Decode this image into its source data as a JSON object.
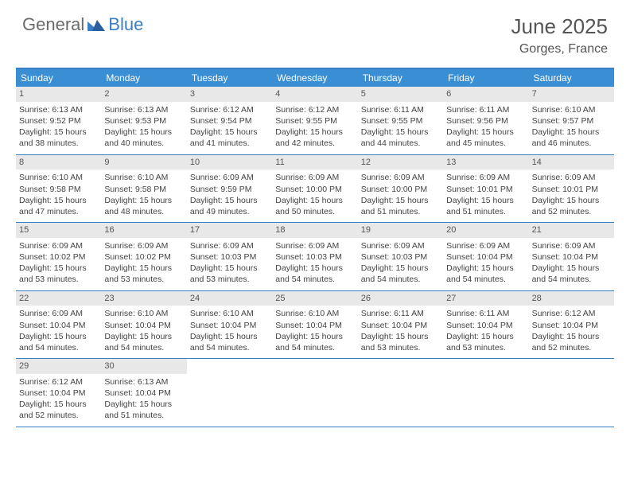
{
  "logo": {
    "text1": "General",
    "text2": "Blue"
  },
  "title": "June 2025",
  "location": "Gorges, France",
  "colors": {
    "header_bar": "#3a8fd4",
    "border": "#3a7fc4",
    "daynum_bg": "#e8e8e8",
    "text": "#444444",
    "logo_gray": "#6a6a6a",
    "logo_blue": "#3a7fc4"
  },
  "weekdays": [
    "Sunday",
    "Monday",
    "Tuesday",
    "Wednesday",
    "Thursday",
    "Friday",
    "Saturday"
  ],
  "weeks": [
    [
      {
        "n": "1",
        "sr": "Sunrise: 6:13 AM",
        "ss": "Sunset: 9:52 PM",
        "dl": "Daylight: 15 hours and 38 minutes."
      },
      {
        "n": "2",
        "sr": "Sunrise: 6:13 AM",
        "ss": "Sunset: 9:53 PM",
        "dl": "Daylight: 15 hours and 40 minutes."
      },
      {
        "n": "3",
        "sr": "Sunrise: 6:12 AM",
        "ss": "Sunset: 9:54 PM",
        "dl": "Daylight: 15 hours and 41 minutes."
      },
      {
        "n": "4",
        "sr": "Sunrise: 6:12 AM",
        "ss": "Sunset: 9:55 PM",
        "dl": "Daylight: 15 hours and 42 minutes."
      },
      {
        "n": "5",
        "sr": "Sunrise: 6:11 AM",
        "ss": "Sunset: 9:55 PM",
        "dl": "Daylight: 15 hours and 44 minutes."
      },
      {
        "n": "6",
        "sr": "Sunrise: 6:11 AM",
        "ss": "Sunset: 9:56 PM",
        "dl": "Daylight: 15 hours and 45 minutes."
      },
      {
        "n": "7",
        "sr": "Sunrise: 6:10 AM",
        "ss": "Sunset: 9:57 PM",
        "dl": "Daylight: 15 hours and 46 minutes."
      }
    ],
    [
      {
        "n": "8",
        "sr": "Sunrise: 6:10 AM",
        "ss": "Sunset: 9:58 PM",
        "dl": "Daylight: 15 hours and 47 minutes."
      },
      {
        "n": "9",
        "sr": "Sunrise: 6:10 AM",
        "ss": "Sunset: 9:58 PM",
        "dl": "Daylight: 15 hours and 48 minutes."
      },
      {
        "n": "10",
        "sr": "Sunrise: 6:09 AM",
        "ss": "Sunset: 9:59 PM",
        "dl": "Daylight: 15 hours and 49 minutes."
      },
      {
        "n": "11",
        "sr": "Sunrise: 6:09 AM",
        "ss": "Sunset: 10:00 PM",
        "dl": "Daylight: 15 hours and 50 minutes."
      },
      {
        "n": "12",
        "sr": "Sunrise: 6:09 AM",
        "ss": "Sunset: 10:00 PM",
        "dl": "Daylight: 15 hours and 51 minutes."
      },
      {
        "n": "13",
        "sr": "Sunrise: 6:09 AM",
        "ss": "Sunset: 10:01 PM",
        "dl": "Daylight: 15 hours and 51 minutes."
      },
      {
        "n": "14",
        "sr": "Sunrise: 6:09 AM",
        "ss": "Sunset: 10:01 PM",
        "dl": "Daylight: 15 hours and 52 minutes."
      }
    ],
    [
      {
        "n": "15",
        "sr": "Sunrise: 6:09 AM",
        "ss": "Sunset: 10:02 PM",
        "dl": "Daylight: 15 hours and 53 minutes."
      },
      {
        "n": "16",
        "sr": "Sunrise: 6:09 AM",
        "ss": "Sunset: 10:02 PM",
        "dl": "Daylight: 15 hours and 53 minutes."
      },
      {
        "n": "17",
        "sr": "Sunrise: 6:09 AM",
        "ss": "Sunset: 10:03 PM",
        "dl": "Daylight: 15 hours and 53 minutes."
      },
      {
        "n": "18",
        "sr": "Sunrise: 6:09 AM",
        "ss": "Sunset: 10:03 PM",
        "dl": "Daylight: 15 hours and 54 minutes."
      },
      {
        "n": "19",
        "sr": "Sunrise: 6:09 AM",
        "ss": "Sunset: 10:03 PM",
        "dl": "Daylight: 15 hours and 54 minutes."
      },
      {
        "n": "20",
        "sr": "Sunrise: 6:09 AM",
        "ss": "Sunset: 10:04 PM",
        "dl": "Daylight: 15 hours and 54 minutes."
      },
      {
        "n": "21",
        "sr": "Sunrise: 6:09 AM",
        "ss": "Sunset: 10:04 PM",
        "dl": "Daylight: 15 hours and 54 minutes."
      }
    ],
    [
      {
        "n": "22",
        "sr": "Sunrise: 6:09 AM",
        "ss": "Sunset: 10:04 PM",
        "dl": "Daylight: 15 hours and 54 minutes."
      },
      {
        "n": "23",
        "sr": "Sunrise: 6:10 AM",
        "ss": "Sunset: 10:04 PM",
        "dl": "Daylight: 15 hours and 54 minutes."
      },
      {
        "n": "24",
        "sr": "Sunrise: 6:10 AM",
        "ss": "Sunset: 10:04 PM",
        "dl": "Daylight: 15 hours and 54 minutes."
      },
      {
        "n": "25",
        "sr": "Sunrise: 6:10 AM",
        "ss": "Sunset: 10:04 PM",
        "dl": "Daylight: 15 hours and 54 minutes."
      },
      {
        "n": "26",
        "sr": "Sunrise: 6:11 AM",
        "ss": "Sunset: 10:04 PM",
        "dl": "Daylight: 15 hours and 53 minutes."
      },
      {
        "n": "27",
        "sr": "Sunrise: 6:11 AM",
        "ss": "Sunset: 10:04 PM",
        "dl": "Daylight: 15 hours and 53 minutes."
      },
      {
        "n": "28",
        "sr": "Sunrise: 6:12 AM",
        "ss": "Sunset: 10:04 PM",
        "dl": "Daylight: 15 hours and 52 minutes."
      }
    ],
    [
      {
        "n": "29",
        "sr": "Sunrise: 6:12 AM",
        "ss": "Sunset: 10:04 PM",
        "dl": "Daylight: 15 hours and 52 minutes."
      },
      {
        "n": "30",
        "sr": "Sunrise: 6:13 AM",
        "ss": "Sunset: 10:04 PM",
        "dl": "Daylight: 15 hours and 51 minutes."
      },
      null,
      null,
      null,
      null,
      null
    ]
  ]
}
